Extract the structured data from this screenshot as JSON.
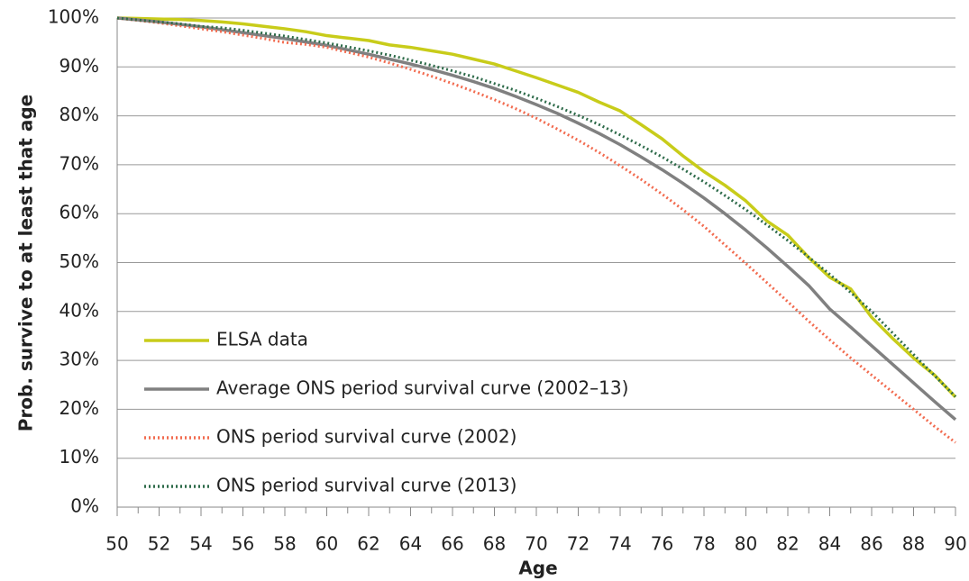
{
  "chart_data": {
    "type": "line",
    "xlabel": "Age",
    "ylabel": "Prob. survive to at least that age",
    "x": [
      50,
      51,
      52,
      53,
      54,
      55,
      56,
      57,
      58,
      59,
      60,
      61,
      62,
      63,
      64,
      65,
      66,
      67,
      68,
      69,
      70,
      71,
      72,
      73,
      74,
      75,
      76,
      77,
      78,
      79,
      80,
      81,
      82,
      83,
      84,
      85,
      86,
      87,
      88,
      89,
      90
    ],
    "xlim": [
      50,
      90
    ],
    "xticks": [
      50,
      52,
      54,
      56,
      58,
      60,
      62,
      64,
      66,
      68,
      70,
      72,
      74,
      76,
      78,
      80,
      82,
      84,
      86,
      88,
      90
    ],
    "ylim": [
      0,
      100
    ],
    "yticks": [
      {
        "value": 0,
        "label": "0%"
      },
      {
        "value": 10,
        "label": "10%"
      },
      {
        "value": 20,
        "label": "20%"
      },
      {
        "value": 30,
        "label": "30%"
      },
      {
        "value": 40,
        "label": "40%"
      },
      {
        "value": 50,
        "label": "50%"
      },
      {
        "value": 60,
        "label": "60%"
      },
      {
        "value": 70,
        "label": "70%"
      },
      {
        "value": 80,
        "label": "80%"
      },
      {
        "value": 90,
        "label": "90%"
      },
      {
        "value": 100,
        "label": "100%"
      }
    ],
    "grid": true,
    "legend": "lower left",
    "series": [
      {
        "name": "ELSA data",
        "color": "#c8cc1a",
        "style": "solid",
        "values": [
          100,
          99.9,
          99.8,
          99.7,
          99.5,
          99.2,
          98.8,
          98.3,
          97.8,
          97.2,
          96.4,
          95.9,
          95.4,
          94.5,
          94.0,
          93.3,
          92.6,
          91.6,
          90.6,
          89.2,
          87.8,
          86.3,
          84.8,
          82.8,
          81.0,
          78.2,
          75.3,
          71.8,
          68.6,
          65.8,
          62.6,
          58.5,
          55.6,
          51.0,
          47.0,
          44.6,
          38.8,
          34.5,
          30.5,
          27.0,
          22.5
        ]
      },
      {
        "name": "Average ONS period survival curve (2002–13)",
        "color": "#808080",
        "style": "solid",
        "values": [
          100,
          99.6,
          99.2,
          98.7,
          98.2,
          97.6,
          97.0,
          96.4,
          95.8,
          95.1,
          94.4,
          93.5,
          92.6,
          91.6,
          90.6,
          89.5,
          88.3,
          87.0,
          85.6,
          84.0,
          82.3,
          80.5,
          78.5,
          76.4,
          74.1,
          71.6,
          69.0,
          66.2,
          63.2,
          60.0,
          56.6,
          53.0,
          49.2,
          45.3,
          40.5,
          36.8,
          33.0,
          29.2,
          25.4,
          21.6,
          17.9
        ]
      },
      {
        "name": "ONS period survival curve (2002)",
        "color": "#f26b4f",
        "style": "dotted",
        "values": [
          100,
          99.5,
          99.0,
          98.4,
          97.8,
          97.2,
          96.5,
          95.8,
          95.0,
          94.6,
          94.0,
          93.0,
          92.0,
          90.8,
          89.5,
          88.1,
          86.6,
          85.0,
          83.3,
          81.5,
          79.5,
          77.3,
          75.0,
          72.5,
          69.8,
          67.0,
          64.0,
          60.8,
          57.4,
          53.6,
          49.8,
          45.9,
          42.0,
          38.0,
          34.2,
          30.5,
          27.0,
          23.5,
          20.0,
          16.5,
          13.2
        ]
      },
      {
        "name": "ONS period survival curve (2013)",
        "color": "#2e6b4a",
        "style": "dotted",
        "values": [
          100,
          99.6,
          99.2,
          98.8,
          98.3,
          98.0,
          97.5,
          96.9,
          96.3,
          95.6,
          94.9,
          94.1,
          93.3,
          92.4,
          91.4,
          90.3,
          89.2,
          88.0,
          86.6,
          85.2,
          83.6,
          81.9,
          80.1,
          78.2,
          76.1,
          73.9,
          71.6,
          69.1,
          66.5,
          63.7,
          60.8,
          57.7,
          54.5,
          51.1,
          47.6,
          43.9,
          40.0,
          35.6,
          31.2,
          26.9,
          22.6
        ]
      }
    ]
  }
}
